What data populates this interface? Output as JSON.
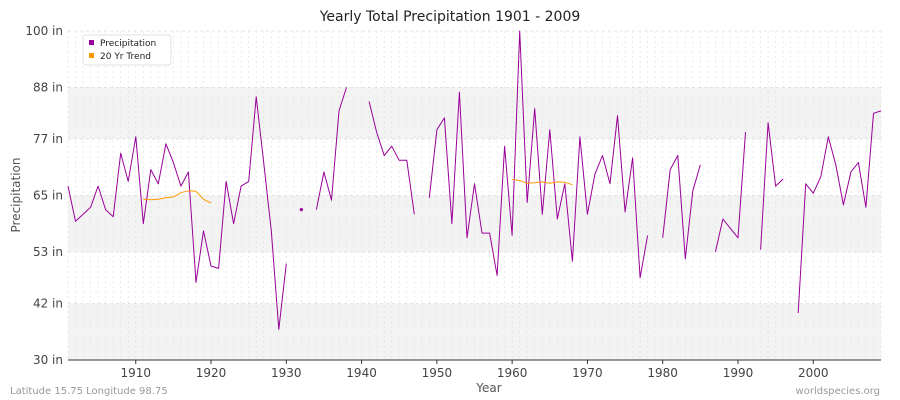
{
  "chart_data": {
    "type": "line",
    "title": "Yearly Total Precipitation 1901 - 2009",
    "xlabel": "Year",
    "ylabel": "Precipitation",
    "xlim": [
      1901,
      2009
    ],
    "ylim": [
      30,
      100
    ],
    "y_ticks": [
      {
        "value": 30,
        "label": "30 in"
      },
      {
        "value": 42,
        "label": "42 in"
      },
      {
        "value": 53,
        "label": "53 in"
      },
      {
        "value": 65,
        "label": "65 in"
      },
      {
        "value": 77,
        "label": "77 in"
      },
      {
        "value": 88,
        "label": "88 in"
      },
      {
        "value": 100,
        "label": "100 in"
      }
    ],
    "x_ticks": [
      1910,
      1920,
      1930,
      1940,
      1950,
      1960,
      1970,
      1980,
      1990,
      2000
    ],
    "legend": {
      "position": "top-left"
    },
    "grid": true,
    "series": [
      {
        "name": "Precipitation",
        "color": "#990099",
        "points": [
          [
            1901,
            67
          ],
          [
            1902,
            59.5
          ],
          [
            1903,
            61
          ],
          [
            1904,
            62.5
          ],
          [
            1905,
            67
          ],
          [
            1906,
            62
          ],
          [
            1907,
            60.5
          ],
          [
            1908,
            74
          ],
          [
            1909,
            68
          ],
          [
            1910,
            77.5
          ],
          [
            1911,
            59
          ],
          [
            1912,
            70.5
          ],
          [
            1913,
            67.5
          ],
          [
            1914,
            76
          ],
          [
            1915,
            72
          ],
          [
            1916,
            67
          ],
          [
            1917,
            70
          ],
          [
            1918,
            46.5
          ],
          [
            1919,
            57.5
          ],
          [
            1920,
            50
          ],
          [
            1921,
            49.5
          ],
          [
            1922,
            68
          ],
          [
            1923,
            59
          ],
          [
            1924,
            67
          ],
          [
            1925,
            68
          ],
          [
            1926,
            86
          ],
          [
            1927,
            72
          ],
          [
            1928,
            57.5
          ],
          [
            1929,
            36.5
          ],
          [
            1930,
            50.5
          ],
          [
            1931,
            null
          ],
          [
            1932,
            62
          ],
          [
            1933,
            null
          ],
          [
            1934,
            62
          ],
          [
            1935,
            70
          ],
          [
            1936,
            64
          ],
          [
            1937,
            83
          ],
          [
            1938,
            88
          ],
          [
            1939,
            null
          ],
          [
            1940,
            null
          ],
          [
            1941,
            85
          ],
          [
            1942,
            78.5
          ],
          [
            1943,
            73.5
          ],
          [
            1944,
            75.5
          ],
          [
            1945,
            72.5
          ],
          [
            1946,
            72.5
          ],
          [
            1947,
            61
          ],
          [
            1948,
            null
          ],
          [
            1949,
            64.5
          ],
          [
            1950,
            79
          ],
          [
            1951,
            81.5
          ],
          [
            1952,
            59
          ],
          [
            1953,
            87
          ],
          [
            1954,
            56
          ],
          [
            1955,
            67.5
          ],
          [
            1956,
            57
          ],
          [
            1957,
            57
          ],
          [
            1958,
            48
          ],
          [
            1959,
            75.5
          ],
          [
            1960,
            56.5
          ],
          [
            1961,
            100
          ],
          [
            1962,
            63.5
          ],
          [
            1963,
            83.5
          ],
          [
            1964,
            61
          ],
          [
            1965,
            79
          ],
          [
            1966,
            60
          ],
          [
            1967,
            67.5
          ],
          [
            1968,
            51
          ],
          [
            1969,
            77.5
          ],
          [
            1970,
            61
          ],
          [
            1971,
            69.5
          ],
          [
            1972,
            73.5
          ],
          [
            1973,
            67.5
          ],
          [
            1974,
            82
          ],
          [
            1975,
            61.5
          ],
          [
            1976,
            73
          ],
          [
            1977,
            47.5
          ],
          [
            1978,
            56.5
          ],
          [
            1979,
            null
          ],
          [
            1980,
            56
          ],
          [
            1981,
            70.5
          ],
          [
            1982,
            73.5
          ],
          [
            1983,
            51.5
          ],
          [
            1984,
            66
          ],
          [
            1985,
            71.5
          ],
          [
            1986,
            null
          ],
          [
            1987,
            53
          ],
          [
            1988,
            60
          ],
          [
            1989,
            58
          ],
          [
            1990,
            56
          ],
          [
            1991,
            78.5
          ],
          [
            1992,
            null
          ],
          [
            1993,
            53.5
          ],
          [
            1994,
            80.5
          ],
          [
            1995,
            67
          ],
          [
            1996,
            68.5
          ],
          [
            1997,
            null
          ],
          [
            1998,
            40
          ],
          [
            1999,
            67.5
          ],
          [
            2000,
            65.5
          ],
          [
            2001,
            69
          ],
          [
            2002,
            77.5
          ],
          [
            2003,
            71.5
          ],
          [
            2004,
            63
          ],
          [
            2005,
            70
          ],
          [
            2006,
            72
          ],
          [
            2007,
            62.5
          ],
          [
            2008,
            82.5
          ],
          [
            2009,
            83
          ]
        ]
      },
      {
        "name": "20 Yr Trend",
        "color": "#ff9900",
        "points": [
          [
            1911,
            64.2
          ],
          [
            1912,
            64.1
          ],
          [
            1913,
            64.2
          ],
          [
            1914,
            64.5
          ],
          [
            1915,
            64.7
          ],
          [
            1916,
            65.6
          ],
          [
            1917,
            66
          ],
          [
            1918,
            65.9
          ],
          [
            1919,
            64.2
          ],
          [
            1920,
            63.4
          ],
          [
            1960,
            68.4
          ],
          [
            1961,
            68.2
          ],
          [
            1962,
            67.6
          ],
          [
            1963,
            67.7
          ],
          [
            1964,
            67.9
          ],
          [
            1965,
            67.6
          ],
          [
            1966,
            67.9
          ],
          [
            1967,
            67.8
          ],
          [
            1968,
            67.3
          ]
        ]
      }
    ],
    "footer_left": "Latitude 15.75 Longitude 98.75",
    "footer_right": "worldspecies.org"
  }
}
